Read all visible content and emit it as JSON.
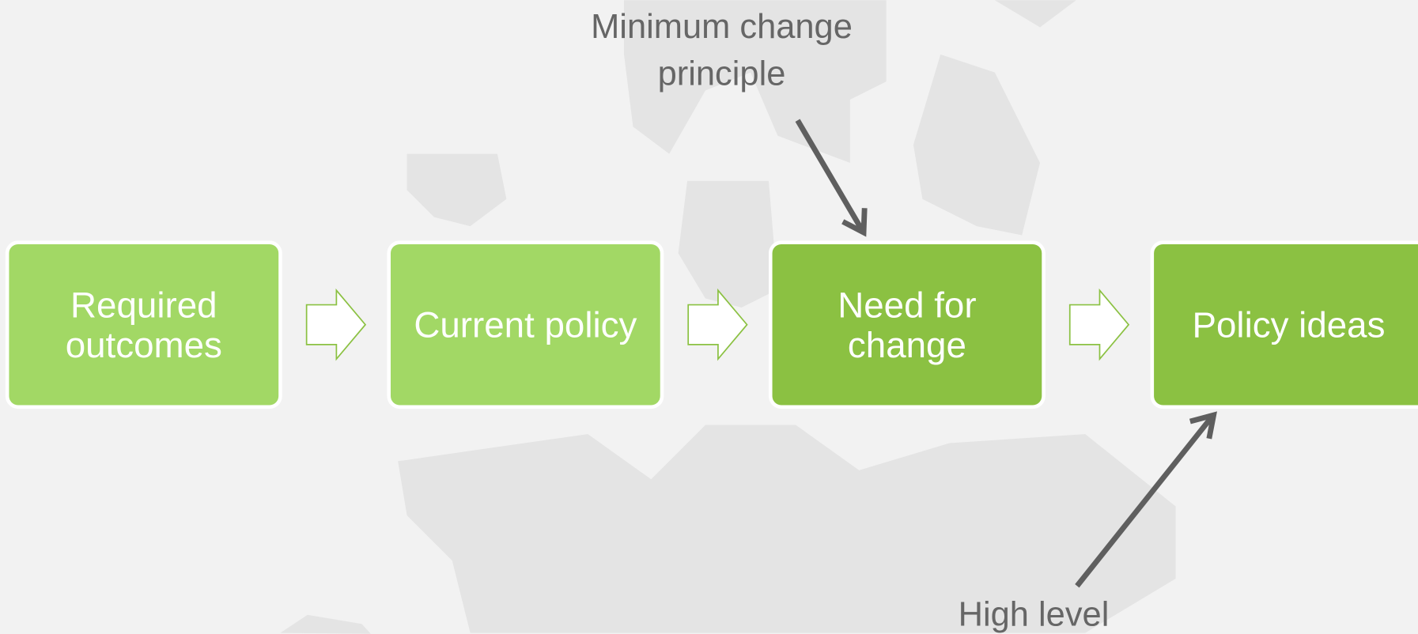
{
  "nodes": [
    {
      "lines": [
        "Required",
        "outcomes"
      ]
    },
    {
      "lines": [
        "Current policy"
      ]
    },
    {
      "lines": [
        "Need for",
        "change"
      ]
    },
    {
      "lines": [
        "Policy ideas"
      ]
    }
  ],
  "annotations": [
    {
      "lines": [
        "Minimum change",
        "principle"
      ]
    },
    {
      "lines": [
        "High level"
      ]
    }
  ]
}
